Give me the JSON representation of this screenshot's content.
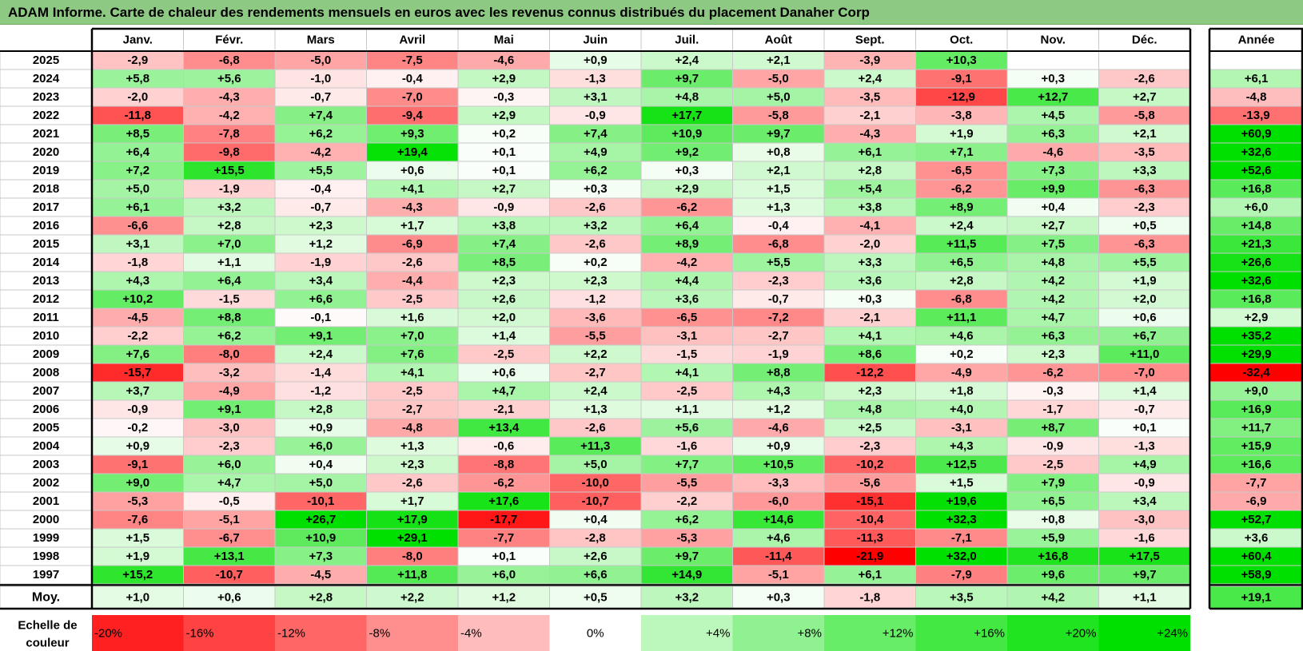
{
  "title": "ADAM Informe. Carte de chaleur des rendements mensuels en euros avec les revenus connus distribués du placement Danaher Corp",
  "chart_data": {
    "type": "heatmap",
    "columns": [
      "Janv.",
      "Févr.",
      "Mars",
      "Avril",
      "Mai",
      "Juin",
      "Juil.",
      "Août",
      "Sept.",
      "Oct.",
      "Nov.",
      "Déc."
    ],
    "year_header": "Année",
    "rows": [
      {
        "year": "2025",
        "months": [
          "-2,9",
          "-6,8",
          "-5,0",
          "-7,5",
          "-4,6",
          "+0,9",
          "+2,4",
          "+2,1",
          "-3,9",
          "+10,3",
          "",
          ""
        ],
        "annual": ""
      },
      {
        "year": "2024",
        "months": [
          "+5,8",
          "+5,6",
          "-1,0",
          "-0,4",
          "+2,9",
          "-1,3",
          "+9,7",
          "-5,0",
          "+2,4",
          "-9,1",
          "+0,3",
          "-2,6"
        ],
        "annual": "+6,1"
      },
      {
        "year": "2023",
        "months": [
          "-2,0",
          "-4,3",
          "-0,7",
          "-7,0",
          "-0,3",
          "+3,1",
          "+4,8",
          "+5,0",
          "-3,5",
          "-12,9",
          "+12,7",
          "+2,7"
        ],
        "annual": "-4,8"
      },
      {
        "year": "2022",
        "months": [
          "-11,8",
          "-4,2",
          "+7,4",
          "-9,4",
          "+2,9",
          "-0,9",
          "+17,7",
          "-5,8",
          "-2,1",
          "-3,8",
          "+4,5",
          "-5,8"
        ],
        "annual": "-13,9"
      },
      {
        "year": "2021",
        "months": [
          "+8,5",
          "-7,8",
          "+6,2",
          "+9,3",
          "+0,2",
          "+7,4",
          "+10,9",
          "+9,7",
          "-4,3",
          "+1,9",
          "+6,3",
          "+2,1"
        ],
        "annual": "+60,9"
      },
      {
        "year": "2020",
        "months": [
          "+6,4",
          "-9,8",
          "-4,2",
          "+19,4",
          "+0,1",
          "+4,9",
          "+9,2",
          "+0,8",
          "+6,1",
          "+7,1",
          "-4,6",
          "-3,5"
        ],
        "annual": "+32,6"
      },
      {
        "year": "2019",
        "months": [
          "+7,2",
          "+15,5",
          "+5,5",
          "+0,6",
          "+0,1",
          "+6,2",
          "+0,3",
          "+2,1",
          "+2,8",
          "-6,5",
          "+7,3",
          "+3,3"
        ],
        "annual": "+52,6"
      },
      {
        "year": "2018",
        "months": [
          "+5,0",
          "-1,9",
          "-0,4",
          "+4,1",
          "+2,7",
          "+0,3",
          "+2,9",
          "+1,5",
          "+5,4",
          "-6,2",
          "+9,9",
          "-6,3"
        ],
        "annual": "+16,8"
      },
      {
        "year": "2017",
        "months": [
          "+6,1",
          "+3,2",
          "-0,7",
          "-4,3",
          "-0,9",
          "-2,6",
          "-6,2",
          "+1,3",
          "+3,8",
          "+8,9",
          "+0,4",
          "-2,3"
        ],
        "annual": "+6,0"
      },
      {
        "year": "2016",
        "months": [
          "-6,6",
          "+2,8",
          "+2,3",
          "+1,7",
          "+3,8",
          "+3,2",
          "+6,4",
          "-0,4",
          "-4,1",
          "+2,4",
          "+2,7",
          "+0,5"
        ],
        "annual": "+14,8"
      },
      {
        "year": "2015",
        "months": [
          "+3,1",
          "+7,0",
          "+1,2",
          "-6,9",
          "+7,4",
          "-2,6",
          "+8,9",
          "-6,8",
          "-2,0",
          "+11,5",
          "+7,5",
          "-6,3"
        ],
        "annual": "+21,3"
      },
      {
        "year": "2014",
        "months": [
          "-1,8",
          "+1,1",
          "-1,9",
          "-2,6",
          "+8,5",
          "+0,2",
          "-4,2",
          "+5,5",
          "+3,3",
          "+6,5",
          "+4,8",
          "+5,5"
        ],
        "annual": "+26,6"
      },
      {
        "year": "2013",
        "months": [
          "+4,3",
          "+6,4",
          "+3,4",
          "-4,4",
          "+2,3",
          "+2,3",
          "+4,4",
          "-2,3",
          "+3,6",
          "+2,8",
          "+4,2",
          "+1,9"
        ],
        "annual": "+32,6"
      },
      {
        "year": "2012",
        "months": [
          "+10,2",
          "-1,5",
          "+6,6",
          "-2,5",
          "+2,6",
          "-1,2",
          "+3,6",
          "-0,7",
          "+0,3",
          "-6,8",
          "+4,2",
          "+2,0"
        ],
        "annual": "+16,8"
      },
      {
        "year": "2011",
        "months": [
          "-4,5",
          "+8,8",
          "-0,1",
          "+1,6",
          "+2,0",
          "-3,6",
          "-6,5",
          "-7,2",
          "-2,1",
          "+11,1",
          "+4,7",
          "+0,6"
        ],
        "annual": "+2,9"
      },
      {
        "year": "2010",
        "months": [
          "-2,2",
          "+6,2",
          "+9,1",
          "+7,0",
          "+1,4",
          "-5,5",
          "-3,1",
          "-2,7",
          "+4,1",
          "+4,6",
          "+6,3",
          "+6,7"
        ],
        "annual": "+35,2"
      },
      {
        "year": "2009",
        "months": [
          "+7,6",
          "-8,0",
          "+2,4",
          "+7,6",
          "-2,5",
          "+2,2",
          "-1,5",
          "-1,9",
          "+8,6",
          "+0,2",
          "+2,3",
          "+11,0"
        ],
        "annual": "+29,9"
      },
      {
        "year": "2008",
        "months": [
          "-15,7",
          "-3,2",
          "-1,4",
          "+4,1",
          "+0,6",
          "-2,7",
          "+4,1",
          "+8,8",
          "-12,2",
          "-4,9",
          "-6,2",
          "-7,0"
        ],
        "annual": "-32,4"
      },
      {
        "year": "2007",
        "months": [
          "+3,7",
          "-4,9",
          "-1,2",
          "-2,5",
          "+4,7",
          "+2,4",
          "-2,5",
          "+4,3",
          "+2,3",
          "+1,8",
          "-0,3",
          "+1,4"
        ],
        "annual": "+9,0"
      },
      {
        "year": "2006",
        "months": [
          "-0,9",
          "+9,1",
          "+2,8",
          "-2,7",
          "-2,1",
          "+1,3",
          "+1,1",
          "+1,2",
          "+4,8",
          "+4,0",
          "-1,7",
          "-0,7"
        ],
        "annual": "+16,9"
      },
      {
        "year": "2005",
        "months": [
          "-0,2",
          "-3,0",
          "+0,9",
          "-4,8",
          "+13,4",
          "-2,6",
          "+5,6",
          "-4,6",
          "+2,5",
          "-3,1",
          "+8,7",
          "+0,1"
        ],
        "annual": "+11,7"
      },
      {
        "year": "2004",
        "months": [
          "+0,9",
          "-2,3",
          "+6,0",
          "+1,3",
          "-0,6",
          "+11,3",
          "-1,6",
          "+0,9",
          "-2,3",
          "+4,3",
          "-0,9",
          "-1,3"
        ],
        "annual": "+15,9"
      },
      {
        "year": "2003",
        "months": [
          "-9,1",
          "+6,0",
          "+0,4",
          "+2,3",
          "-8,8",
          "+5,0",
          "+7,7",
          "+10,5",
          "-10,2",
          "+12,5",
          "-2,5",
          "+4,9"
        ],
        "annual": "+16,6"
      },
      {
        "year": "2002",
        "months": [
          "+9,0",
          "+4,7",
          "+5,0",
          "-2,6",
          "-6,2",
          "-10,0",
          "-5,5",
          "-3,3",
          "-5,6",
          "+1,5",
          "+7,9",
          "-0,9"
        ],
        "annual": "-7,7"
      },
      {
        "year": "2001",
        "months": [
          "-5,3",
          "-0,5",
          "-10,1",
          "+1,7",
          "+17,6",
          "-10,7",
          "-2,2",
          "-6,0",
          "-15,1",
          "+19,6",
          "+6,5",
          "+3,4"
        ],
        "annual": "-6,9"
      },
      {
        "year": "2000",
        "months": [
          "-7,6",
          "-5,1",
          "+26,7",
          "+17,9",
          "-17,7",
          "+0,4",
          "+6,2",
          "+14,6",
          "-10,4",
          "+32,3",
          "+0,8",
          "-3,0"
        ],
        "annual": "+52,7"
      },
      {
        "year": "1999",
        "months": [
          "+1,5",
          "-6,7",
          "+10,9",
          "+29,1",
          "-7,7",
          "-2,8",
          "-5,3",
          "+4,6",
          "-11,3",
          "-7,1",
          "+5,9",
          "-1,6"
        ],
        "annual": "+3,6"
      },
      {
        "year": "1998",
        "months": [
          "+1,9",
          "+13,1",
          "+7,3",
          "-8,0",
          "+0,1",
          "+2,6",
          "+9,7",
          "-11,4",
          "-21,9",
          "+32,0",
          "+16,8",
          "+17,5"
        ],
        "annual": "+60,4"
      },
      {
        "year": "1997",
        "months": [
          "+15,2",
          "-10,7",
          "-4,5",
          "+11,8",
          "+6,0",
          "+6,6",
          "+14,9",
          "-5,1",
          "+6,1",
          "-7,9",
          "+9,6",
          "+9,7"
        ],
        "annual": "+58,9"
      }
    ],
    "average": {
      "label": "Moy.",
      "months": [
        "+1,0",
        "+0,6",
        "+2,8",
        "+2,2",
        "+1,2",
        "+0,5",
        "+3,2",
        "+0,3",
        "-1,8",
        "+3,5",
        "+4,2",
        "+1,1"
      ],
      "annual": "+19,1"
    },
    "scale": {
      "label_line1": "Echelle de",
      "label_line2": "couleur",
      "stops": [
        "-20%",
        "-16%",
        "-12%",
        "-8%",
        "-4%",
        "0%",
        "+4%",
        "+8%",
        "+12%",
        "+16%",
        "+20%",
        "+24%"
      ],
      "values": [
        -20,
        -16,
        -12,
        -8,
        -4,
        0,
        4,
        8,
        12,
        16,
        20,
        24
      ]
    },
    "colors": {
      "negative_max": "#ff0000",
      "positive_max": "#00e000",
      "neutral": "#ffffff",
      "title_bar": "#8dc982",
      "grid": "#c8c8c8"
    }
  }
}
